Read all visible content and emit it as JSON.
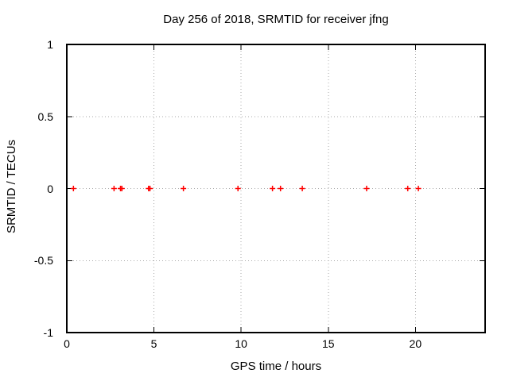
{
  "chart_data": {
    "type": "scatter",
    "title": "Day 256 of 2018, SRMTID for receiver jfng",
    "xlabel": "GPS time / hours",
    "ylabel": "SRMTID / TECUs",
    "xlim": [
      0,
      24
    ],
    "ylim": [
      -1,
      1
    ],
    "x_ticks": [
      0,
      5,
      10,
      15,
      20
    ],
    "x_tick_labels": [
      "0",
      "5",
      "10",
      "15",
      "20"
    ],
    "y_ticks": [
      1,
      0.5,
      0,
      -0.5,
      -1
    ],
    "y_tick_labels": [
      "1",
      "0.5",
      "0",
      "-0.5",
      "-1"
    ],
    "grid": true,
    "legend": "none",
    "marker": "plus",
    "series": [
      {
        "name": "SRMTID",
        "x": [
          0.38,
          2.71,
          3.08,
          3.16,
          4.69,
          4.77,
          6.69,
          9.82,
          11.8,
          12.26,
          13.51,
          17.2,
          19.56,
          20.17
        ],
        "y": [
          0,
          0,
          0,
          0,
          0,
          0,
          0,
          0,
          0,
          0,
          0,
          0,
          0,
          0
        ]
      }
    ],
    "colors": {
      "marker": "#ff0000",
      "grid": "#aaaaaa",
      "border": "#000000",
      "text": "#000000",
      "background": "#ffffff"
    }
  }
}
